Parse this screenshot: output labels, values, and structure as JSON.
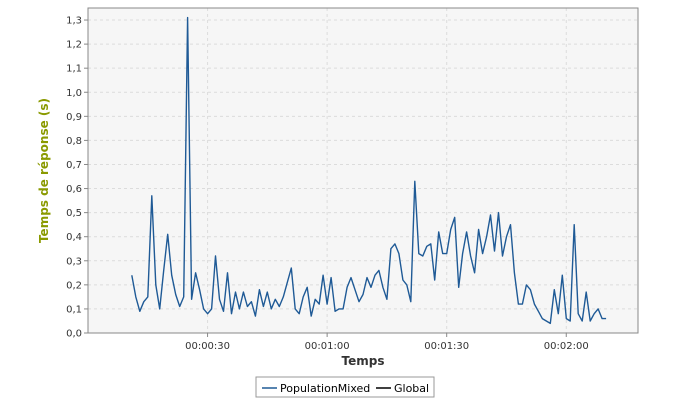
{
  "colors": {
    "plot_background": "#f6f6f6",
    "grid": "#dcdcdc",
    "axis": "#888888",
    "series_population": "#1f5a96",
    "series_global": "#000000",
    "ylabel_color": "#8a9a00",
    "xlabel_color": "#333333"
  },
  "chart_data": {
    "type": "line",
    "title": "",
    "xlabel": "Temps",
    "ylabel": "Temps de réponse (s)",
    "xlim_seconds": [
      0,
      138
    ],
    "ylim": [
      0,
      1.35
    ],
    "y_ticks": [
      "0,0",
      "0,1",
      "0,2",
      "0,3",
      "0,4",
      "0,5",
      "0,6",
      "0,7",
      "0,8",
      "0,9",
      "1,0",
      "1,1",
      "1,2",
      "1,3"
    ],
    "x_ticks": [
      {
        "seconds": 30,
        "label": "00:00:30"
      },
      {
        "seconds": 60,
        "label": "00:01:00"
      },
      {
        "seconds": 90,
        "label": "00:01:30"
      },
      {
        "seconds": 120,
        "label": "00:02:00"
      }
    ],
    "grid": true,
    "legend_position": "bottom-center",
    "series": [
      {
        "name": "PopulationMixed",
        "x": [
          11,
          12,
          13,
          14,
          15,
          16,
          17,
          18,
          19,
          20,
          21,
          22,
          23,
          24,
          25,
          26,
          27,
          28,
          29,
          30,
          31,
          32,
          33,
          34,
          35,
          36,
          37,
          38,
          39,
          40,
          41,
          42,
          43,
          44,
          45,
          46,
          47,
          48,
          49,
          50,
          51,
          52,
          53,
          54,
          55,
          56,
          57,
          58,
          59,
          60,
          61,
          62,
          63,
          64,
          65,
          66,
          67,
          68,
          69,
          70,
          71,
          72,
          73,
          74,
          75,
          76,
          77,
          78,
          79,
          80,
          81,
          82,
          83,
          84,
          85,
          86,
          87,
          88,
          89,
          90,
          91,
          92,
          93,
          94,
          95,
          96,
          97,
          98,
          99,
          100,
          101,
          102,
          103,
          104,
          105,
          106,
          107,
          108,
          109,
          110,
          111,
          112,
          113,
          114,
          115,
          116,
          117,
          118,
          119,
          120,
          121,
          122,
          123,
          124,
          125,
          126,
          127,
          128,
          129,
          130
        ],
        "y": [
          0.24,
          0.15,
          0.09,
          0.13,
          0.15,
          0.57,
          0.2,
          0.1,
          0.26,
          0.41,
          0.24,
          0.16,
          0.11,
          0.15,
          1.31,
          0.14,
          0.25,
          0.18,
          0.1,
          0.08,
          0.1,
          0.32,
          0.14,
          0.09,
          0.25,
          0.08,
          0.17,
          0.1,
          0.17,
          0.11,
          0.13,
          0.07,
          0.18,
          0.11,
          0.17,
          0.1,
          0.14,
          0.11,
          0.15,
          0.21,
          0.27,
          0.1,
          0.08,
          0.15,
          0.19,
          0.07,
          0.14,
          0.12,
          0.24,
          0.12,
          0.23,
          0.09,
          0.1,
          0.1,
          0.19,
          0.23,
          0.18,
          0.13,
          0.16,
          0.23,
          0.19,
          0.24,
          0.26,
          0.19,
          0.14,
          0.35,
          0.37,
          0.33,
          0.22,
          0.2,
          0.13,
          0.63,
          0.33,
          0.32,
          0.36,
          0.37,
          0.22,
          0.42,
          0.33,
          0.33,
          0.43,
          0.48,
          0.19,
          0.33,
          0.42,
          0.32,
          0.25,
          0.43,
          0.33,
          0.4,
          0.49,
          0.34,
          0.5,
          0.32,
          0.4,
          0.45,
          0.25,
          0.12,
          0.12,
          0.2,
          0.18,
          0.12,
          0.09,
          0.06,
          0.05,
          0.04,
          0.18,
          0.08,
          0.24,
          0.06,
          0.05,
          0.45,
          0.08,
          0.05,
          0.17,
          0.05,
          0.08,
          0.1,
          0.06,
          0.06
        ],
        "color": "#1f5a96"
      },
      {
        "name": "Global",
        "x": [],
        "y": [],
        "color": "#000000"
      }
    ]
  }
}
